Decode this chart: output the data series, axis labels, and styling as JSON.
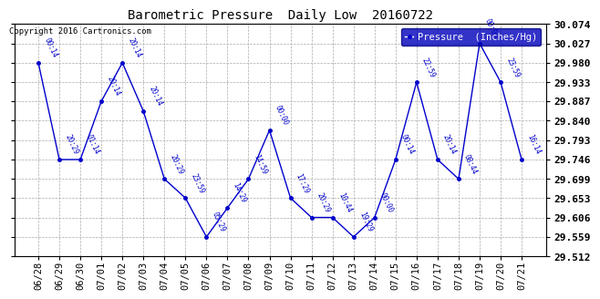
{
  "title": "Barometric Pressure  Daily Low  20160722",
  "copyright": "Copyright 2016 Cartronics.com",
  "legend_label": "Pressure  (Inches/Hg)",
  "bg_color": "#ffffff",
  "line_color": "#0000cc",
  "x_labels": [
    "06/28",
    "06/29",
    "06/30",
    "07/01",
    "07/02",
    "07/03",
    "07/04",
    "07/05",
    "07/06",
    "07/07",
    "07/08",
    "07/09",
    "07/10",
    "07/11",
    "07/12",
    "07/13",
    "07/14",
    "07/15",
    "07/16",
    "07/17",
    "07/18",
    "07/19",
    "07/20",
    "07/21"
  ],
  "y_values": [
    29.98,
    29.746,
    29.746,
    29.887,
    29.98,
    29.863,
    29.699,
    29.653,
    29.559,
    29.629,
    29.699,
    29.817,
    29.653,
    29.606,
    29.606,
    29.559,
    29.606,
    29.746,
    29.933,
    29.746,
    29.699,
    30.027,
    29.933,
    29.746
  ],
  "time_labels": [
    "00:14",
    "20:29",
    "01:14",
    "20:14",
    "20:14",
    "20:14",
    "20:29",
    "23:59",
    "05:29",
    "14:29",
    "14:59",
    "00:00",
    "17:29",
    "20:29",
    "10:44",
    "19:29",
    "00:00",
    "00:14",
    "22:59",
    "20:14",
    "08:44",
    "00:00",
    "23:59",
    "16:14"
  ],
  "ylim_min": 29.512,
  "ylim_max": 30.074,
  "yticks": [
    29.512,
    29.559,
    29.606,
    29.653,
    29.699,
    29.746,
    29.793,
    29.84,
    29.887,
    29.933,
    29.98,
    30.027,
    30.074
  ]
}
